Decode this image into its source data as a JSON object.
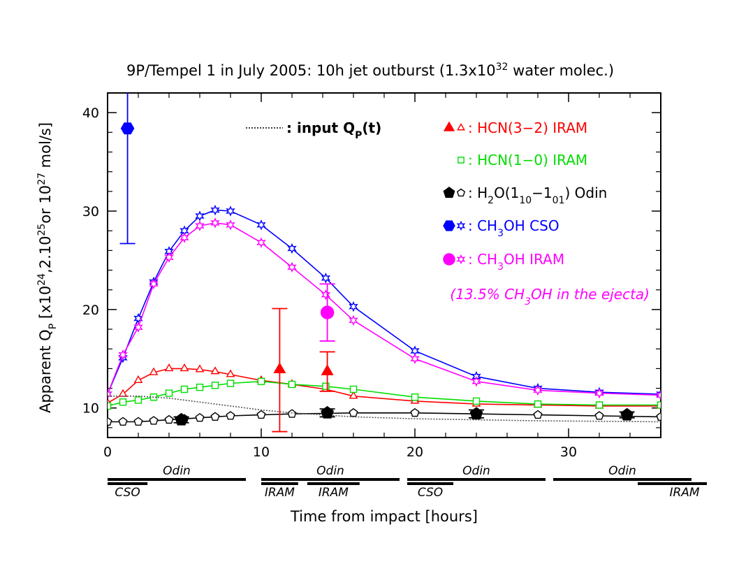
{
  "chart_data": {
    "type": "line",
    "title": "9P/Tempel 1 in July 2005: 10h jet outburst (1.3x10^32 water molec.)",
    "title_parts": {
      "main": "9P/Tempel 1 in July 2005: 10h jet outburst (1.3x10",
      "sup": "32",
      "tail": " water molec.)"
    },
    "xlabel": "Time from impact [hours]",
    "ylabel_parts": {
      "a": "Apparent Q",
      "a_sub": "P",
      "b": " [x10",
      "b_sup": "24",
      "c": ",2.10",
      "c_sup": "25",
      "d": "or 10",
      "d_sup": "27",
      "e": " mol/s]"
    },
    "xlim": [
      0,
      36
    ],
    "ylim": [
      7,
      42
    ],
    "xticks": [
      0,
      10,
      20,
      30
    ],
    "yticks": [
      10,
      20,
      30,
      40
    ],
    "colors": {
      "hcn32": "#ff0000",
      "hcn10": "#00dd00",
      "h2o": "#000000",
      "cso": "#0000ff",
      "iram": "#ff00ff",
      "input": "#555555"
    },
    "series": [
      {
        "name": "CH3OH CSO model",
        "color": "#0000ff",
        "marker": "star",
        "x": [
          0,
          1,
          2,
          3,
          4,
          5,
          6,
          7,
          8,
          10,
          12,
          14.2,
          16,
          20,
          24,
          28,
          32,
          36
        ],
        "y": [
          11.4,
          15.1,
          19.1,
          22.8,
          25.9,
          28.0,
          29.5,
          30.1,
          30.0,
          28.6,
          26.2,
          23.2,
          20.3,
          15.8,
          13.2,
          12.0,
          11.6,
          11.4
        ]
      },
      {
        "name": "CH3OH IRAM model",
        "color": "#ff00ff",
        "marker": "star",
        "x": [
          0,
          1,
          2,
          3,
          4,
          5,
          6,
          7,
          8,
          10,
          12,
          14.2,
          16,
          20,
          24,
          28,
          32,
          36
        ],
        "y": [
          11.4,
          15.4,
          18.2,
          22.6,
          25.3,
          27.3,
          28.5,
          28.8,
          28.6,
          26.8,
          24.3,
          21.5,
          18.9,
          15.0,
          12.7,
          11.8,
          11.5,
          11.3
        ]
      },
      {
        "name": "HCN(3-2) IRAM model",
        "color": "#ff0000",
        "marker": "triangle",
        "x": [
          0,
          1,
          2,
          3,
          4,
          5,
          6,
          7,
          8,
          10,
          12,
          14.2,
          16,
          20,
          24,
          28,
          32,
          36
        ],
        "y": [
          10.5,
          11.4,
          12.8,
          13.6,
          14.0,
          14.0,
          13.9,
          13.7,
          13.4,
          12.8,
          12.4,
          11.9,
          11.2,
          10.7,
          10.4,
          10.3,
          10.2,
          10.2
        ]
      },
      {
        "name": "HCN(1-0) IRAM model",
        "color": "#00dd00",
        "marker": "square",
        "x": [
          0,
          1,
          2,
          3,
          4,
          5,
          6,
          7,
          8,
          10,
          12,
          14.2,
          16,
          20,
          24,
          28,
          32,
          36
        ],
        "y": [
          10.2,
          10.6,
          10.8,
          11.1,
          11.5,
          11.9,
          12.1,
          12.3,
          12.5,
          12.7,
          12.4,
          12.2,
          11.9,
          11.1,
          10.7,
          10.4,
          10.3,
          10.3
        ]
      },
      {
        "name": "H2O(110-101) Odin model",
        "color": "#000000",
        "marker": "pentagon",
        "x": [
          0,
          1,
          2,
          3,
          4,
          5,
          6,
          7,
          8,
          10,
          12,
          14.2,
          16,
          20,
          24,
          28,
          32,
          36
        ],
        "y": [
          8.6,
          8.6,
          8.6,
          8.7,
          8.8,
          8.9,
          9.0,
          9.1,
          9.2,
          9.3,
          9.4,
          9.45,
          9.5,
          9.5,
          9.4,
          9.3,
          9.2,
          9.1
        ]
      },
      {
        "name": "input Qp(t)",
        "color": "#555555",
        "marker": "none",
        "dotted": true,
        "x": [
          0,
          1,
          2,
          3,
          4,
          5,
          6,
          8,
          10,
          12,
          14,
          16,
          20,
          24,
          28,
          32,
          36
        ],
        "y": [
          11.2,
          11.2,
          11.2,
          11.1,
          11.0,
          10.8,
          10.6,
          10.2,
          9.8,
          9.5,
          9.3,
          9.1,
          8.9,
          8.8,
          8.7,
          8.65,
          8.6
        ]
      }
    ],
    "measurements": [
      {
        "name": "CH3OH CSO",
        "color": "#0000ff",
        "marker": "filled-hexagon",
        "x": 1.3,
        "y": 38.4,
        "ylo": 26.7,
        "yhi": 42
      },
      {
        "name": "CH3OH IRAM",
        "color": "#ff00ff",
        "marker": "filled-circle",
        "x": 14.3,
        "y": 19.7,
        "ylo": 16.8,
        "yhi": 22.6
      },
      {
        "name": "HCN(3-2) IRAM a",
        "color": "#ff0000",
        "marker": "filled-triangle",
        "x": 11.2,
        "y": 13.9,
        "ylo": 7.6,
        "yhi": 20.1
      },
      {
        "name": "HCN(3-2) IRAM b",
        "color": "#ff0000",
        "marker": "filled-triangle",
        "x": 14.3,
        "y": 13.7,
        "ylo": 11.7,
        "yhi": 15.7
      },
      {
        "name": "H2O Odin a",
        "color": "#000000",
        "marker": "filled-pentagon",
        "x": 4.8,
        "y": 8.8,
        "ylo": 8.5,
        "yhi": 9.1
      },
      {
        "name": "H2O Odin b",
        "color": "#000000",
        "marker": "filled-pentagon",
        "x": 14.3,
        "y": 9.5,
        "ylo": 9.1,
        "yhi": 9.9
      },
      {
        "name": "H2O Odin c",
        "color": "#000000",
        "marker": "filled-pentagon",
        "x": 24,
        "y": 9.4,
        "ylo": 9.0,
        "yhi": 9.8
      },
      {
        "name": "H2O Odin d",
        "color": "#000000",
        "marker": "filled-pentagon",
        "x": 33.8,
        "y": 9.3,
        "ylo": 9.0,
        "yhi": 9.6
      }
    ],
    "legend": [
      {
        "key": "input",
        "text": ": input Q",
        "sub": "P",
        "tail": "(t)",
        "color": "#000000"
      },
      {
        "key": "hcn32",
        "text": ": HCN(3−2) IRAM",
        "color": "#ff0000"
      },
      {
        "key": "hcn10",
        "text": ": HCN(1−0) IRAM",
        "color": "#00dd00"
      },
      {
        "key": "h2o",
        "text": ": H",
        "sub": "2",
        "mid": "O(1",
        "sub2": "10",
        "mid2": "−1",
        "sub3": "01",
        "tail": ") Odin",
        "color": "#000000"
      },
      {
        "key": "cso",
        "text": ": CH",
        "sub": "3",
        "tail": "OH CSO",
        "color": "#0000ff"
      },
      {
        "key": "iram",
        "text": ": CH",
        "sub": "3",
        "tail": "OH IRAM",
        "color": "#ff00ff"
      }
    ],
    "annotation": {
      "a": "(13.5% CH",
      "sub": "3",
      "b": "OH in the ejecta)",
      "color": "#ff00ff"
    },
    "observation_windows": [
      {
        "label": "Odin",
        "row": "upper",
        "x0": 0,
        "x1": 9
      },
      {
        "label": "CSO",
        "row": "lower",
        "x0": 0,
        "x1": 2.6
      },
      {
        "label": "Odin",
        "row": "upper",
        "x0": 10,
        "x1": 19
      },
      {
        "label": "IRAM",
        "row": "lower",
        "x0": 10,
        "x1": 12.4
      },
      {
        "label": "IRAM",
        "row": "lower",
        "x0": 13,
        "x1": 16.4
      },
      {
        "label": "Odin",
        "row": "upper",
        "x0": 19.5,
        "x1": 28.5
      },
      {
        "label": "CSO",
        "row": "lower",
        "x0": 19.5,
        "x1": 22.5
      },
      {
        "label": "Odin",
        "row": "upper",
        "x0": 29,
        "x1": 38
      },
      {
        "label": "IRAM",
        "row": "lower",
        "x0": 34.5,
        "x1": 39
      }
    ]
  }
}
